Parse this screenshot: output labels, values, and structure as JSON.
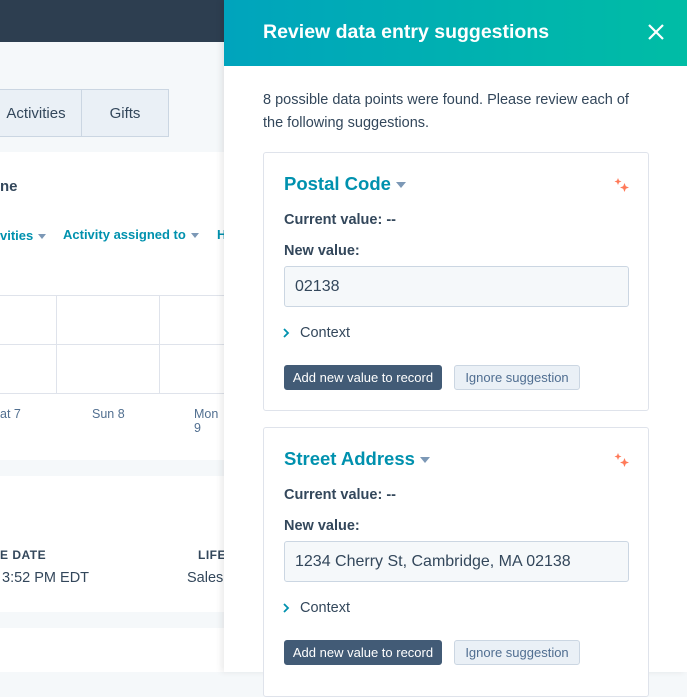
{
  "background": {
    "tabs": [
      "Activities",
      "Gifts"
    ],
    "section_title_fragment": "ne",
    "filters": [
      "vities",
      "Activity assigned to",
      "H"
    ],
    "dates": [
      "at 7",
      "Sun 8",
      "Mon 9"
    ],
    "columns": [
      "E DATE",
      "LIFE"
    ],
    "values": [
      "3:52 PM EDT",
      "Sales"
    ]
  },
  "panel": {
    "title": "Review data entry suggestions",
    "close_icon": "close-icon",
    "intro": "8 possible data points were found. Please review each of the following suggestions.",
    "colors": {
      "header_start": "#00a4bd",
      "header_end": "#00bda5",
      "accent": "#0091ae",
      "primary_button": "#425b76",
      "sparkle": "#ff7a59"
    },
    "suggestions": [
      {
        "field": "Postal Code",
        "current_label": "Current value: --",
        "new_label": "New value:",
        "new_value": "02138",
        "context": "Context",
        "add_label": "Add new value to record",
        "ignore_label": "Ignore suggestion"
      },
      {
        "field": "Street Address",
        "current_label": "Current value: --",
        "new_label": "New value:",
        "new_value": "1234 Cherry St, Cambridge, MA 02138",
        "context": "Context",
        "add_label": "Add new value to record",
        "ignore_label": "Ignore suggestion"
      }
    ]
  }
}
